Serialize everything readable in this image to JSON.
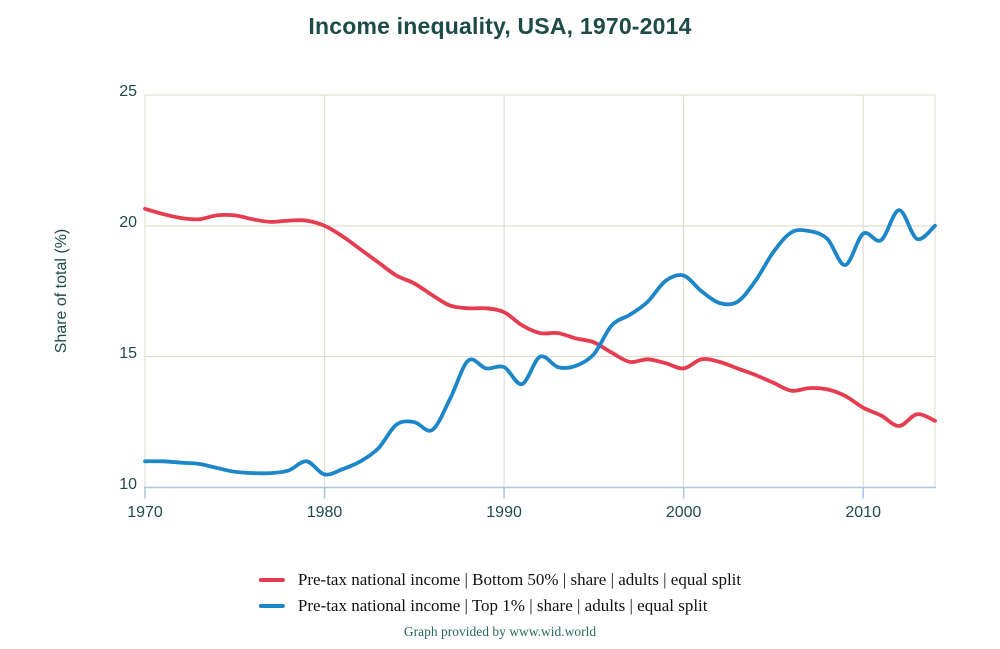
{
  "title": "Income inequality, USA, 1970-2014",
  "footer": "Graph provided by www.wid.world",
  "colors": {
    "title_text": "#1d4b47",
    "axis_text": "#1d4b47",
    "footer_text": "#26695c",
    "grid": "#dcd8c7",
    "axis_line": "#afc6e3",
    "bottom50_red": "#e63c50",
    "top1_blue": "#1d86c8",
    "background": "#ffffff"
  },
  "y_axis": {
    "title": "Share of total (%)",
    "ticks": [
      25,
      20,
      15,
      10
    ]
  },
  "x_axis": {
    "ticks": [
      1970,
      1980,
      1990,
      2000,
      2010
    ]
  },
  "chart_data": {
    "type": "line",
    "title": "Income inequality, USA, 1970-2014",
    "xlabel": "",
    "ylabel": "Share of total (%)",
    "xlim": [
      1970,
      2014
    ],
    "ylim": [
      10,
      25
    ],
    "x_ticks": [
      1970,
      1980,
      1990,
      2000,
      2010
    ],
    "y_ticks": [
      10,
      15,
      20,
      25
    ],
    "grid": true,
    "legend_position": "bottom",
    "x": [
      1970,
      1971,
      1972,
      1973,
      1974,
      1975,
      1976,
      1977,
      1978,
      1979,
      1980,
      1981,
      1982,
      1983,
      1984,
      1985,
      1986,
      1987,
      1988,
      1989,
      1990,
      1991,
      1992,
      1993,
      1994,
      1995,
      1996,
      1997,
      1998,
      1999,
      2000,
      2001,
      2002,
      2003,
      2004,
      2005,
      2006,
      2007,
      2008,
      2009,
      2010,
      2011,
      2012,
      2013,
      2014
    ],
    "series": [
      {
        "name": "Pre-tax national income | Bottom 50% | share | adults | equal split",
        "color": "#e63c50",
        "values": [
          20.65,
          20.45,
          20.3,
          20.25,
          20.4,
          20.4,
          20.25,
          20.15,
          20.2,
          20.2,
          20.0,
          19.6,
          19.1,
          18.6,
          18.1,
          17.8,
          17.35,
          16.95,
          16.85,
          16.85,
          16.7,
          16.2,
          15.9,
          15.9,
          15.7,
          15.55,
          15.15,
          14.8,
          14.9,
          14.75,
          14.55,
          14.9,
          14.8,
          14.55,
          14.3,
          14.0,
          13.7,
          13.8,
          13.75,
          13.5,
          13.05,
          12.75,
          12.35,
          12.8,
          12.55
        ]
      },
      {
        "name": "Pre-tax national income | Top 1% | share | adults | equal split",
        "color": "#1d86c8",
        "values": [
          11.0,
          11.0,
          10.95,
          10.9,
          10.75,
          10.6,
          10.55,
          10.55,
          10.65,
          11.0,
          10.5,
          10.7,
          11.0,
          11.5,
          12.4,
          12.5,
          12.2,
          13.4,
          14.85,
          14.55,
          14.6,
          13.95,
          15.0,
          14.6,
          14.65,
          15.1,
          16.2,
          16.6,
          17.1,
          17.9,
          18.1,
          17.5,
          17.05,
          17.1,
          17.9,
          19.0,
          19.75,
          19.8,
          19.5,
          18.5,
          19.7,
          19.45,
          20.6,
          19.5,
          20.0
        ]
      }
    ]
  }
}
